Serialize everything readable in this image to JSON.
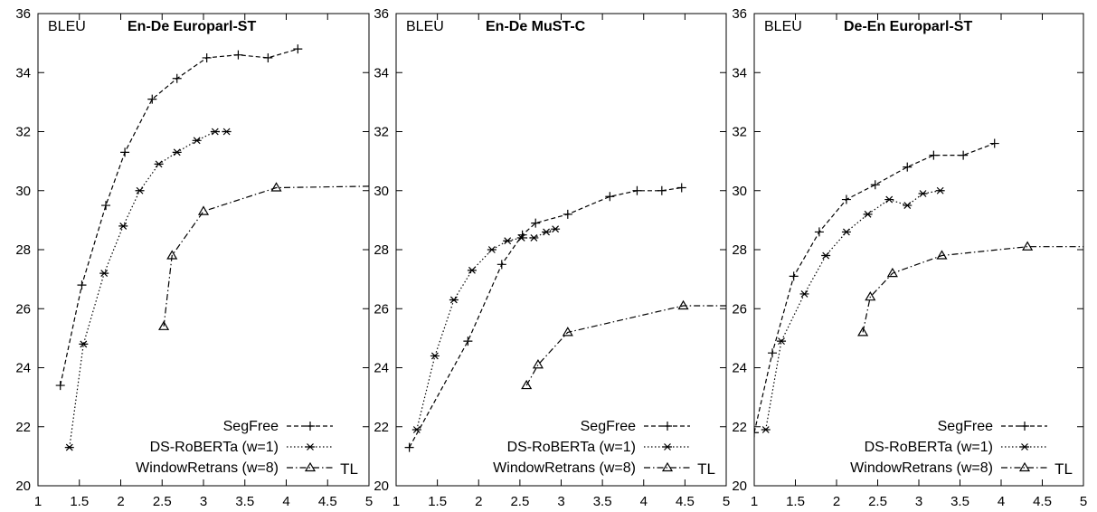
{
  "chart_data": [
    {
      "type": "line",
      "title": "En-De Europarl-ST",
      "ylabel": "BLEU",
      "xlabel": "TL",
      "xlim": [
        1,
        5
      ],
      "ylim": [
        20,
        36
      ],
      "x_ticks": [
        "1",
        "1.5",
        "2",
        "2.5",
        "3",
        "3.5",
        "4",
        "4.5",
        "5"
      ],
      "y_ticks": [
        "20",
        "22",
        "24",
        "26",
        "28",
        "30",
        "32",
        "34",
        "36"
      ],
      "legend_position": "bottom-right",
      "series": [
        {
          "name": "SegFree",
          "marker": "plus",
          "dash": "dashed",
          "x": [
            1.27,
            1.53,
            1.82,
            2.05,
            2.38,
            2.68,
            3.04,
            3.42,
            3.78,
            4.14
          ],
          "y": [
            23.4,
            26.8,
            29.5,
            31.3,
            33.1,
            33.8,
            34.5,
            34.6,
            34.5,
            34.8
          ]
        },
        {
          "name": "DS-RoBERTa (w=1)",
          "marker": "asterisk",
          "dash": "dotted",
          "x": [
            1.38,
            1.55,
            1.8,
            2.03,
            2.23,
            2.46,
            2.68,
            2.92,
            3.14,
            3.28
          ],
          "y": [
            21.3,
            24.8,
            27.2,
            28.8,
            30.0,
            30.9,
            31.3,
            31.7,
            32.0,
            32.0
          ]
        },
        {
          "name": "WindowRetrans (w=8)",
          "marker": "triangle",
          "dash": "dashdot",
          "x": [
            2.52,
            2.62,
            3.0,
            3.88,
            5.0
          ],
          "y": [
            25.4,
            27.8,
            29.3,
            30.1,
            30.15
          ]
        }
      ]
    },
    {
      "type": "line",
      "title": "En-De MuST-C",
      "ylabel": "BLEU",
      "xlabel": "TL",
      "xlim": [
        1,
        5
      ],
      "ylim": [
        20,
        36
      ],
      "x_ticks": [
        "1",
        "1.5",
        "2",
        "2.5",
        "3",
        "3.5",
        "4",
        "4.5",
        "5"
      ],
      "y_ticks": [
        "20",
        "22",
        "24",
        "26",
        "28",
        "30",
        "32",
        "34",
        "36"
      ],
      "legend_position": "bottom-right",
      "series": [
        {
          "name": "SegFree",
          "marker": "plus",
          "dash": "dashed",
          "x": [
            1.16,
            1.87,
            2.28,
            2.53,
            2.69,
            3.08,
            3.59,
            3.92,
            4.22,
            4.46
          ],
          "y": [
            21.3,
            24.9,
            27.5,
            28.5,
            28.9,
            29.2,
            29.8,
            30.0,
            30.0,
            30.1
          ]
        },
        {
          "name": "DS-RoBERTa (w=1)",
          "marker": "asterisk",
          "dash": "dotted",
          "x": [
            1.25,
            1.47,
            1.7,
            1.92,
            2.16,
            2.35,
            2.52,
            2.67,
            2.82,
            2.93
          ],
          "y": [
            21.9,
            24.4,
            26.3,
            27.3,
            28.0,
            28.3,
            28.4,
            28.4,
            28.6,
            28.7
          ]
        },
        {
          "name": "WindowRetrans (w=8)",
          "marker": "triangle",
          "dash": "dashdot",
          "x": [
            2.58,
            2.72,
            3.08,
            4.48,
            5.0
          ],
          "y": [
            23.4,
            24.1,
            25.2,
            26.1,
            26.1
          ]
        }
      ]
    },
    {
      "type": "line",
      "title": "De-En Europarl-ST",
      "ylabel": "BLEU",
      "xlabel": "TL",
      "xlim": [
        1,
        5
      ],
      "ylim": [
        20,
        36
      ],
      "x_ticks": [
        "1",
        "1.5",
        "2",
        "2.5",
        "3",
        "3.5",
        "4",
        "4.5",
        "5"
      ],
      "y_ticks": [
        "20",
        "22",
        "24",
        "26",
        "28",
        "30",
        "32",
        "34",
        "36"
      ],
      "legend_position": "bottom-right",
      "series": [
        {
          "name": "SegFree",
          "marker": "plus",
          "dash": "dashed",
          "x": [
            1.0,
            1.22,
            1.48,
            1.79,
            2.12,
            2.47,
            2.86,
            3.18,
            3.54,
            3.92
          ],
          "y": [
            21.8,
            24.5,
            27.1,
            28.6,
            29.7,
            30.2,
            30.8,
            31.2,
            31.2,
            31.6
          ]
        },
        {
          "name": "DS-RoBERTa (w=1)",
          "marker": "asterisk",
          "dash": "dotted",
          "x": [
            1.14,
            1.33,
            1.61,
            1.87,
            2.12,
            2.38,
            2.64,
            2.86,
            3.05,
            3.26
          ],
          "y": [
            21.9,
            24.9,
            26.5,
            27.8,
            28.6,
            29.2,
            29.7,
            29.5,
            29.9,
            30.0
          ]
        },
        {
          "name": "WindowRetrans (w=8)",
          "marker": "triangle",
          "dash": "dashdot",
          "x": [
            2.32,
            2.41,
            2.68,
            3.28,
            4.32,
            5.0
          ],
          "y": [
            25.2,
            26.4,
            27.2,
            27.8,
            28.1,
            28.1
          ]
        }
      ]
    }
  ]
}
